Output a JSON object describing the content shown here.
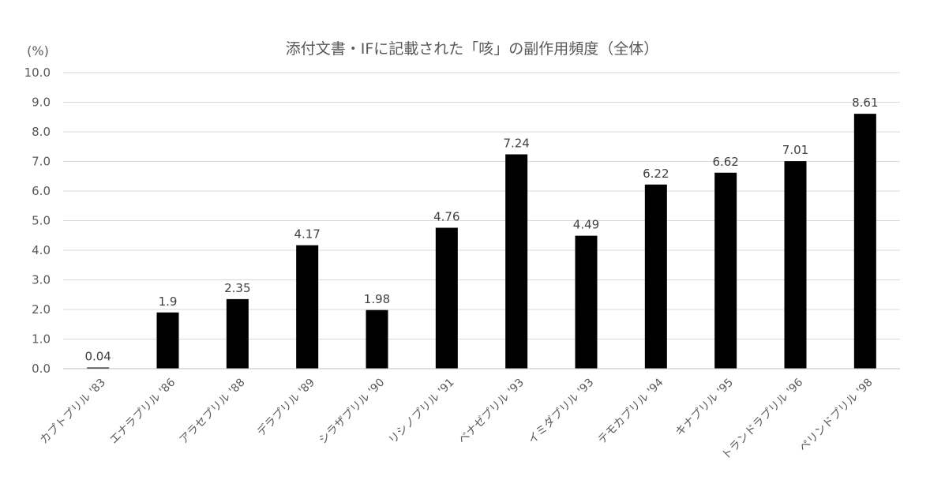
{
  "chart_data": {
    "type": "bar",
    "title": "添付文書・IFに記載された「咳」の副作用頻度（全体）",
    "ylabel": "(%)",
    "xlabel": "",
    "ylim": [
      0,
      10
    ],
    "yticks": [
      "0.0",
      "1.0",
      "2.0",
      "3.0",
      "4.0",
      "5.0",
      "6.0",
      "7.0",
      "8.0",
      "9.0",
      "10.0"
    ],
    "grid": true,
    "legend": "none",
    "bar_color": "#000000",
    "categories": [
      "カプトプリル '83",
      "エナラプリル '86",
      "アラセプリル '88",
      "デラプリル '89",
      "シラザプリル '90",
      "リシノプリル '91",
      "ベナゼプリル '93",
      "イミダプリル '93",
      "テモカプリル '94",
      "キナプリル '95",
      "トランドラプリル '96",
      "ペリンドプリル '98"
    ],
    "values": [
      0.04,
      1.9,
      2.35,
      4.17,
      1.98,
      4.76,
      7.24,
      4.49,
      6.22,
      6.62,
      7.01,
      8.61
    ],
    "data_labels": [
      "0.04",
      "1.9",
      "2.35",
      "4.17",
      "1.98",
      "4.76",
      "7.24",
      "4.49",
      "6.22",
      "6.62",
      "7.01",
      "8.61"
    ]
  }
}
